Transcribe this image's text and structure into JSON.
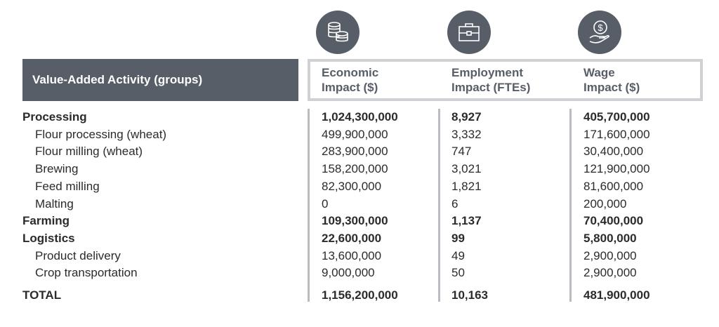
{
  "header": {
    "activity": "Value-Added Activity (groups)",
    "columns": [
      {
        "line1": "Economic",
        "line2": "Impact ($)",
        "icon": "coins-icon"
      },
      {
        "line1": "Employment",
        "line2": "Impact (FTEs)",
        "icon": "briefcase-icon"
      },
      {
        "line1": "Wage",
        "line2": "Impact ($)",
        "icon": "hand-dollar-icon"
      }
    ]
  },
  "rows": [
    {
      "label": "Processing",
      "economic": "1,024,300,000",
      "employment": "8,927",
      "wage": "405,700,000",
      "bold": true
    },
    {
      "label": "Flour processing (wheat)",
      "economic": "499,900,000",
      "employment": "3,332",
      "wage": "171,600,000"
    },
    {
      "label": "Flour milling (wheat)",
      "economic": "283,900,000",
      "employment": "747",
      "wage": "30,400,000"
    },
    {
      "label": "Brewing",
      "economic": "158,200,000",
      "employment": "3,021",
      "wage": "121,900,000"
    },
    {
      "label": "Feed milling",
      "economic": "82,300,000",
      "employment": "1,821",
      "wage": "81,600,000"
    },
    {
      "label": "Malting",
      "economic": "0",
      "employment": "6",
      "wage": "200,000"
    },
    {
      "label": "Farming",
      "economic": "109,300,000",
      "employment": "1,137",
      "wage": "70,400,000",
      "bold": true
    },
    {
      "label": "Logistics",
      "economic": "22,600,000",
      "employment": "99",
      "wage": "5,800,000",
      "bold": true
    },
    {
      "label": "Product delivery",
      "economic": "13,600,000",
      "employment": "49",
      "wage": "2,900,000"
    },
    {
      "label": "Crop transportation",
      "economic": "9,000,000",
      "employment": "50",
      "wage": "2,900,000"
    }
  ],
  "total": {
    "label": "TOTAL",
    "economic": "1,156,200,000",
    "employment": "10,163",
    "wage": "481,900,000"
  }
}
